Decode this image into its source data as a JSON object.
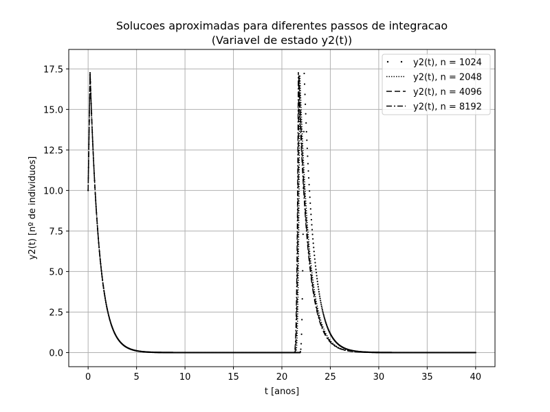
{
  "chart_data": {
    "type": "line",
    "title": "Solucoes aproximadas para diferentes passos de integracao",
    "subtitle": "(Variavel de estado y2(t))",
    "xlabel": "t [anos]",
    "ylabel": "y2(t) [nº de individuos]",
    "xlim": [
      -2,
      42
    ],
    "ylim": [
      -0.87,
      18.7
    ],
    "xticks": [
      0,
      5,
      10,
      15,
      20,
      25,
      30,
      35,
      40
    ],
    "yticks": [
      0.0,
      2.5,
      5.0,
      7.5,
      10.0,
      12.5,
      15.0,
      17.5
    ],
    "xtick_labels": [
      "0",
      "5",
      "10",
      "15",
      "20",
      "25",
      "30",
      "35",
      "40"
    ],
    "ytick_labels": [
      "0.0",
      "2.5",
      "5.0",
      "7.5",
      "10.0",
      "12.5",
      "15.0",
      "17.5"
    ],
    "grid": true,
    "legend_position": "top-right",
    "series": [
      {
        "name": "y2(t), n = 1024",
        "style": "sparse-dots",
        "peak2_t": 22.3
      },
      {
        "name": "y2(t), n = 2048",
        "style": "dotted",
        "peak2_t": 21.85
      },
      {
        "name": "y2(t), n = 4096",
        "style": "dashed",
        "peak2_t": 21.75
      },
      {
        "name": "y2(t), n = 8192",
        "style": "dash-dot",
        "peak2_t": 21.7
      }
    ],
    "initial_value": 10.0,
    "peak_value": 17.3,
    "peak1_t": 0.2
  }
}
